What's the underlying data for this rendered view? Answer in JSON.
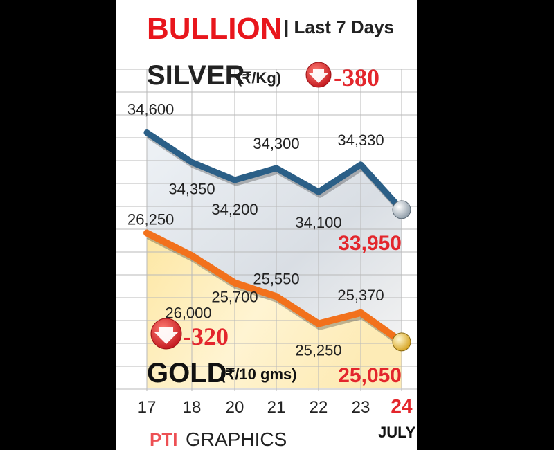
{
  "header": {
    "title": "BULLION",
    "subtitle": "| Last 7 Days"
  },
  "footer": {
    "credit_logo": "PTI",
    "credit_text": "GRAPHICS",
    "month": "JULY"
  },
  "colors": {
    "title_red": "#e8161c",
    "silver_line": "#2b5f87",
    "gold_line": "#f2711c",
    "change_red": "#e3262c",
    "grid": "#b9b9b9"
  },
  "chart_data": [
    {
      "type": "line",
      "title": "SILVER",
      "unit": "(₹/Kg)",
      "change": "-380",
      "x": [
        "17",
        "18",
        "20",
        "21",
        "22",
        "23",
        "24"
      ],
      "series": [
        {
          "values": [
            34600,
            34350,
            34200,
            34300,
            34100,
            34330,
            33950
          ]
        }
      ],
      "value_labels": [
        "34,600",
        "34,350",
        "34,200",
        "34,300",
        "34,100",
        "34,330",
        "33,950"
      ],
      "ylim": [
        33850,
        34650
      ]
    },
    {
      "type": "area",
      "title": "GOLD",
      "unit": "(₹/10 gms)",
      "change": "-320",
      "x": [
        "17",
        "18",
        "20",
        "21",
        "22",
        "23",
        "24"
      ],
      "series": [
        {
          "values": [
            26250,
            26000,
            25700,
            25550,
            25250,
            25370,
            25050
          ]
        }
      ],
      "value_labels": [
        "26,250",
        "26,000",
        "25,700",
        "25,550",
        "25,250",
        "25,370",
        "25,050"
      ],
      "ylim": [
        24980,
        26300
      ]
    }
  ]
}
